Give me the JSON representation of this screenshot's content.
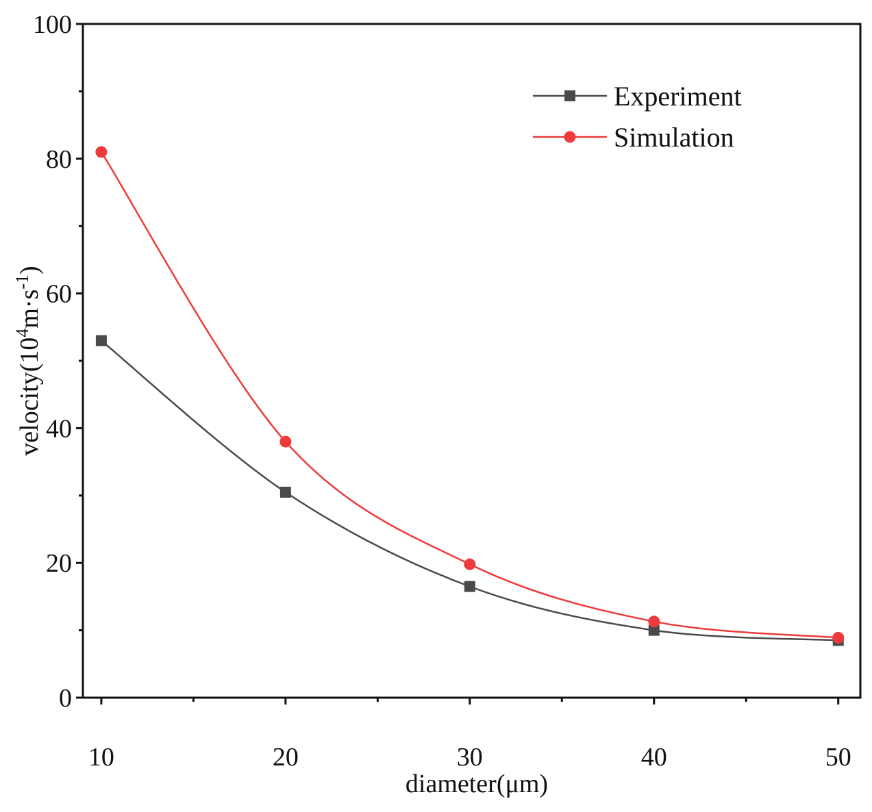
{
  "chart_data": {
    "type": "line",
    "x": [
      10,
      20,
      30,
      40,
      50
    ],
    "series": [
      {
        "name": "Experiment",
        "values": [
          53,
          30.5,
          16.5,
          10,
          8.5
        ],
        "color": "#4a4a4a",
        "marker": "square"
      },
      {
        "name": "Simulation",
        "values": [
          81,
          38,
          19.8,
          11.3,
          8.9
        ],
        "color": "#ee3a3a",
        "marker": "circle"
      }
    ],
    "xlabel": "diameter(μm)",
    "ylabel": {
      "prefix": "velocity(10",
      "exp1": "4",
      "mid": "m·s",
      "exp2": "-1",
      "suffix": ")"
    },
    "xlim": [
      9,
      51.2
    ],
    "ylim": [
      0,
      100
    ],
    "x_ticks": [
      10,
      20,
      30,
      40,
      50
    ],
    "x_minor_ticks": [
      15,
      25,
      35,
      45
    ],
    "y_ticks": [
      0,
      20,
      40,
      60,
      80,
      100
    ],
    "y_minor_ticks": [
      10,
      30,
      50,
      70,
      90
    ],
    "legend_position": "top-right",
    "grid": false
  }
}
